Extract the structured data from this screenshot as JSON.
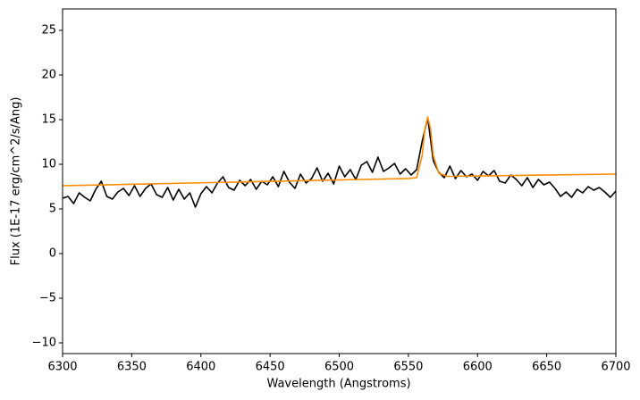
{
  "chart_data": {
    "type": "line",
    "xlabel": "Wavelength (Angstroms)",
    "ylabel": "Flux (1E-17 erg/cm^2/s/Ang)",
    "xlim": [
      6300,
      6700
    ],
    "ylim": [
      -11.2,
      27.4
    ],
    "xticks": [
      6300,
      6350,
      6400,
      6450,
      6500,
      6550,
      6600,
      6650,
      6700
    ],
    "yticks": [
      {
        "value": -10,
        "label": "−10"
      },
      {
        "value": -5,
        "label": "−5"
      },
      0,
      5,
      10,
      15,
      20,
      25
    ],
    "grid": false,
    "series": [
      {
        "color": "#000000",
        "x": [
          6300,
          6304,
          6308,
          6312,
          6316,
          6320,
          6324,
          6328,
          6332,
          6336,
          6340,
          6344,
          6348,
          6352,
          6356,
          6360,
          6364,
          6368,
          6372,
          6376,
          6380,
          6384,
          6388,
          6392,
          6396,
          6400,
          6404,
          6408,
          6412,
          6416,
          6420,
          6424,
          6428,
          6432,
          6436,
          6440,
          6444,
          6448,
          6452,
          6456,
          6460,
          6464,
          6468,
          6472,
          6476,
          6480,
          6484,
          6488,
          6492,
          6496,
          6500,
          6504,
          6508,
          6512,
          6516,
          6520,
          6524,
          6528,
          6532,
          6536,
          6540,
          6544,
          6548,
          6552,
          6556,
          6560,
          6564,
          6568,
          6572,
          6576,
          6580,
          6584,
          6588,
          6592,
          6596,
          6600,
          6604,
          6608,
          6612,
          6616,
          6620,
          6624,
          6628,
          6632,
          6636,
          6640,
          6644,
          6648,
          6652,
          6656,
          6660,
          6664,
          6668,
          6672,
          6676,
          6680,
          6684,
          6688,
          6692,
          6696,
          6700
        ],
        "values": [
          6.2,
          6.4,
          5.6,
          6.8,
          6.3,
          5.9,
          7.2,
          8.1,
          6.4,
          6.1,
          6.9,
          7.3,
          6.5,
          7.6,
          6.4,
          7.3,
          7.8,
          6.6,
          6.3,
          7.4,
          6.0,
          7.2,
          6.1,
          6.8,
          5.2,
          6.7,
          7.5,
          6.8,
          7.9,
          8.6,
          7.4,
          7.1,
          8.2,
          7.6,
          8.3,
          7.2,
          8.1,
          7.7,
          8.6,
          7.5,
          9.2,
          8.0,
          7.3,
          8.9,
          7.9,
          8.4,
          9.6,
          8.1,
          9.0,
          7.8,
          9.8,
          8.6,
          9.4,
          8.3,
          9.9,
          10.3,
          9.1,
          10.8,
          9.2,
          9.6,
          10.1,
          8.9,
          9.5,
          8.8,
          9.4,
          12.6,
          15.2,
          10.4,
          9.1,
          8.5,
          9.8,
          8.4,
          9.3,
          8.6,
          8.9,
          8.2,
          9.2,
          8.7,
          9.3,
          8.1,
          7.9,
          8.8,
          8.3,
          7.6,
          8.5,
          7.4,
          8.3,
          7.7,
          8.0,
          7.3,
          6.4,
          6.9,
          6.3,
          7.2,
          6.8,
          7.5,
          7.1,
          7.4,
          6.9,
          6.3,
          7.0
        ]
      },
      {
        "color": "#ff8c00",
        "x": [
          6300,
          6550,
          6556,
          6560,
          6562,
          6564,
          6566,
          6568,
          6572,
          6578,
          6700
        ],
        "values": [
          7.6,
          8.41,
          8.5,
          11.0,
          14.0,
          15.3,
          14.0,
          11.0,
          9.0,
          8.65,
          8.9
        ]
      }
    ]
  }
}
